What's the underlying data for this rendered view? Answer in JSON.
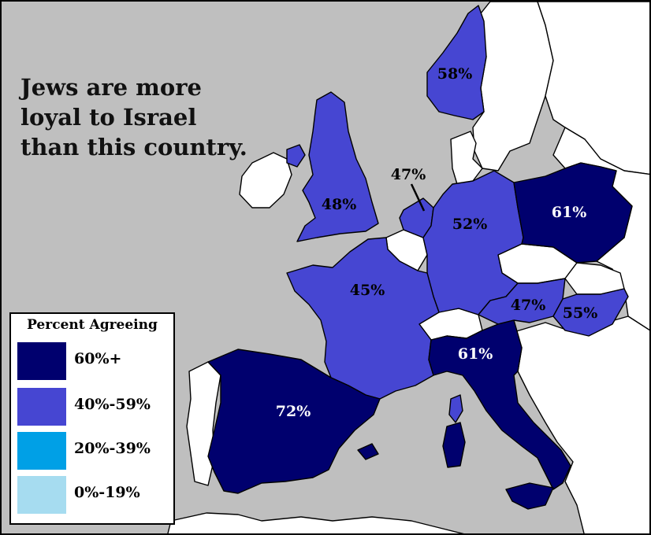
{
  "title": "Jews are more loyal to Israel than this country.",
  "colors": {
    "sea": "#bfbfbf",
    "non_surveyed": "#ffffff",
    "bin_60_plus": "#00006e",
    "bin_40_59": "#4646d2",
    "bin_20_39": "#00a0e6",
    "bin_0_19": "#a6dcf0"
  },
  "legend": {
    "title": "Percent Agreeing",
    "items": [
      {
        "label": "60%+",
        "color": "#00006e"
      },
      {
        "label": "40%-59%",
        "color": "#4646d2"
      },
      {
        "label": "20%-39%",
        "color": "#00a0e6"
      },
      {
        "label": "0%-19%",
        "color": "#a6dcf0"
      }
    ]
  },
  "regions": [
    {
      "value": 72,
      "label": "72%",
      "bin": "60%+",
      "color": "#00006e",
      "text_color": "#ffffff"
    },
    {
      "value": 61,
      "label": "61%",
      "bin": "60%+",
      "color": "#00006e",
      "text_color": "#ffffff"
    },
    {
      "value": 61,
      "label": "61%",
      "bin": "60%+",
      "color": "#00006e",
      "text_color": "#ffffff"
    },
    {
      "value": 58,
      "label": "58%",
      "bin": "40%-59%",
      "color": "#4646d2",
      "text_color": "#000000"
    },
    {
      "value": 55,
      "label": "55%",
      "bin": "40%-59%",
      "color": "#4646d2",
      "text_color": "#000000"
    },
    {
      "value": 52,
      "label": "52%",
      "bin": "40%-59%",
      "color": "#4646d2",
      "text_color": "#000000"
    },
    {
      "value": 48,
      "label": "48%",
      "bin": "40%-59%",
      "color": "#4646d2",
      "text_color": "#000000"
    },
    {
      "value": 47,
      "label": "47%",
      "bin": "40%-59%",
      "color": "#4646d2",
      "text_color": "#000000"
    },
    {
      "value": 47,
      "label": "47%",
      "bin": "40%-59%",
      "color": "#4646d2",
      "text_color": "#000000"
    },
    {
      "value": 45,
      "label": "45%",
      "bin": "40%-59%",
      "color": "#4646d2",
      "text_color": "#000000"
    }
  ]
}
